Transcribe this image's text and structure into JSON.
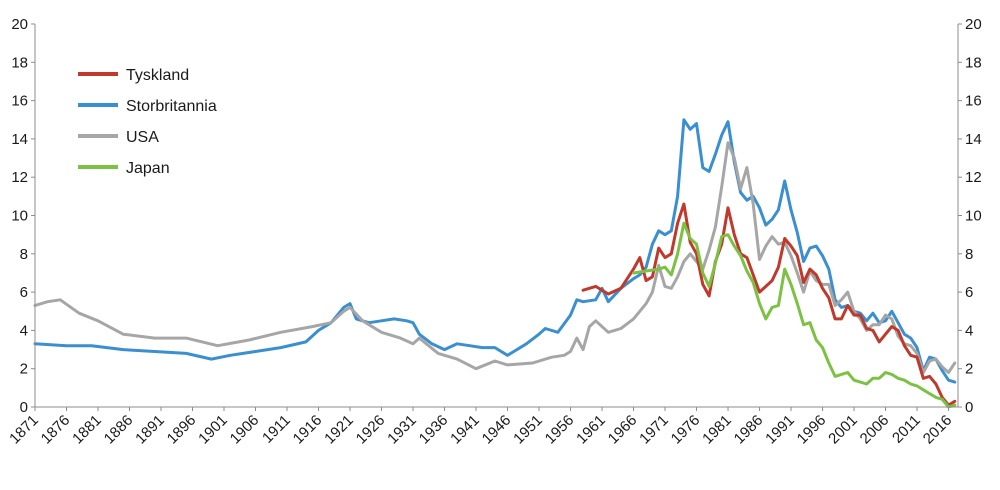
{
  "chart_data": {
    "type": "line",
    "title": "",
    "xlabel": "",
    "ylabel": "",
    "xlim": [
      1871,
      2017.5
    ],
    "ylim": [
      0,
      20
    ],
    "y_ticks": [
      0,
      2,
      4,
      6,
      8,
      10,
      12,
      14,
      16,
      18,
      20
    ],
    "y_tick_labels": [
      "0",
      "2",
      "4",
      "6",
      "8",
      "10",
      "12",
      "14",
      "16",
      "18",
      "20"
    ],
    "secondary_y_axis": true,
    "x_ticks": [
      1871,
      1876,
      1881,
      1886,
      1891,
      1896,
      1901,
      1906,
      1911,
      1916,
      1921,
      1926,
      1931,
      1936,
      1941,
      1946,
      1951,
      1956,
      1961,
      1966,
      1971,
      1976,
      1981,
      1986,
      1991,
      1996,
      2001,
      2006,
      2011,
      2016
    ],
    "x_tick_labels": [
      "1871",
      "1876",
      "1881",
      "1886",
      "1891",
      "1896",
      "1901",
      "1906",
      "1911",
      "1916",
      "1921",
      "1926",
      "1931",
      "1936",
      "1941",
      "1946",
      "1951",
      "1956",
      "1961",
      "1966",
      "1971",
      "1976",
      "1981",
      "1986",
      "1991",
      "1996",
      "2001",
      "2006",
      "2011",
      "2016"
    ],
    "x_tick_label_rotation": -45,
    "grid": false,
    "legend_position": "top-left",
    "series": [
      {
        "name": "Tyskland",
        "color": "#c0392b",
        "x": [
          1958,
          1960,
          1962,
          1964,
          1966,
          1967,
          1968,
          1969,
          1970,
          1971,
          1972,
          1973,
          1974,
          1975,
          1976,
          1977,
          1978,
          1979,
          1980,
          1981,
          1982,
          1983,
          1984,
          1985,
          1986,
          1987,
          1988,
          1989,
          1990,
          1991,
          1992,
          1993,
          1994,
          1995,
          1996,
          1997,
          1998,
          1999,
          2000,
          2001,
          2002,
          2003,
          2004,
          2005,
          2006,
          2007,
          2008,
          2009,
          2010,
          2011,
          2012,
          2013,
          2014,
          2015,
          2016,
          2017
        ],
        "y": [
          6.1,
          6.3,
          5.9,
          6.2,
          7.2,
          7.8,
          6.6,
          6.8,
          8.3,
          7.8,
          8.0,
          9.6,
          10.6,
          8.6,
          8.0,
          6.4,
          5.8,
          7.6,
          8.5,
          10.4,
          9.0,
          8.0,
          7.8,
          6.9,
          6.0,
          6.3,
          6.6,
          7.3,
          8.8,
          8.4,
          7.9,
          6.5,
          7.2,
          6.9,
          6.2,
          5.7,
          4.6,
          4.6,
          5.3,
          4.8,
          4.8,
          4.1,
          4.0,
          3.4,
          3.8,
          4.2,
          4.0,
          3.2,
          2.7,
          2.6,
          1.5,
          1.6,
          1.2,
          0.5,
          0.1,
          0.3
        ]
      },
      {
        "name": "Storbritannia",
        "color": "#3a8fd0",
        "x": [
          1871,
          1876,
          1880,
          1885,
          1890,
          1895,
          1899,
          1902,
          1906,
          1910,
          1914,
          1916,
          1918,
          1920,
          1921,
          1922,
          1924,
          1926,
          1928,
          1930,
          1931,
          1932,
          1934,
          1936,
          1938,
          1940,
          1942,
          1944,
          1946,
          1947,
          1949,
          1951,
          1952,
          1954,
          1956,
          1957,
          1958,
          1960,
          1961,
          1962,
          1964,
          1966,
          1967,
          1968,
          1969,
          1970,
          1971,
          1972,
          1973,
          1974,
          1975,
          1976,
          1977,
          1978,
          1979,
          1980,
          1981,
          1982,
          1983,
          1984,
          1985,
          1986,
          1987,
          1988,
          1989,
          1990,
          1991,
          1992,
          1993,
          1994,
          1995,
          1996,
          1997,
          1998,
          1999,
          2000,
          2001,
          2002,
          2003,
          2004,
          2005,
          2006,
          2007,
          2008,
          2009,
          2010,
          2011,
          2012,
          2013,
          2014,
          2015,
          2016,
          2017
        ],
        "y": [
          3.3,
          3.2,
          3.2,
          3.0,
          2.9,
          2.8,
          2.5,
          2.7,
          2.9,
          3.1,
          3.4,
          4.0,
          4.4,
          5.2,
          5.4,
          4.6,
          4.4,
          4.5,
          4.6,
          4.5,
          4.4,
          3.8,
          3.3,
          3.0,
          3.3,
          3.2,
          3.1,
          3.1,
          2.7,
          2.9,
          3.3,
          3.8,
          4.1,
          3.9,
          4.8,
          5.6,
          5.5,
          5.6,
          6.2,
          5.5,
          6.2,
          6.7,
          6.9,
          7.3,
          8.5,
          9.2,
          9.0,
          9.2,
          11.0,
          15.0,
          14.5,
          14.8,
          12.5,
          12.3,
          13.2,
          14.2,
          14.9,
          12.8,
          11.2,
          10.8,
          11.0,
          10.4,
          9.5,
          9.8,
          10.3,
          11.8,
          10.3,
          9.1,
          7.6,
          8.3,
          8.4,
          7.9,
          7.2,
          5.6,
          5.2,
          5.3,
          5.0,
          4.9,
          4.5,
          4.9,
          4.4,
          4.5,
          5.0,
          4.4,
          3.8,
          3.6,
          3.1,
          1.9,
          2.6,
          2.5,
          1.9,
          1.4,
          1.3
        ]
      },
      {
        "name": "USA",
        "color": "#a6a6a6",
        "x": [
          1871,
          1873,
          1875,
          1878,
          1881,
          1885,
          1890,
          1895,
          1900,
          1905,
          1910,
          1915,
          1918,
          1920,
          1921,
          1923,
          1926,
          1929,
          1931,
          1932,
          1935,
          1938,
          1941,
          1944,
          1946,
          1950,
          1953,
          1955,
          1956,
          1957,
          1958,
          1959,
          1960,
          1962,
          1964,
          1966,
          1967,
          1968,
          1969,
          1970,
          1971,
          1972,
          1973,
          1974,
          1975,
          1976,
          1977,
          1978,
          1979,
          1980,
          1981,
          1982,
          1983,
          1984,
          1985,
          1986,
          1987,
          1988,
          1989,
          1990,
          1991,
          1992,
          1993,
          1994,
          1995,
          1996,
          1997,
          1998,
          1999,
          2000,
          2001,
          2002,
          2003,
          2004,
          2005,
          2006,
          2007,
          2008,
          2009,
          2010,
          2011,
          2012,
          2013,
          2014,
          2015,
          2016,
          2017
        ],
        "y": [
          5.3,
          5.5,
          5.6,
          4.9,
          4.5,
          3.8,
          3.6,
          3.6,
          3.2,
          3.5,
          3.9,
          4.2,
          4.4,
          5.0,
          5.2,
          4.5,
          3.9,
          3.6,
          3.3,
          3.6,
          2.8,
          2.5,
          2.0,
          2.4,
          2.2,
          2.3,
          2.6,
          2.7,
          2.9,
          3.6,
          3.0,
          4.2,
          4.5,
          3.9,
          4.1,
          4.6,
          5.0,
          5.4,
          6.0,
          7.4,
          6.3,
          6.2,
          6.8,
          7.6,
          8.0,
          7.6,
          7.2,
          8.2,
          9.4,
          11.5,
          13.8,
          13.0,
          11.4,
          12.5,
          10.6,
          7.7,
          8.4,
          8.9,
          8.5,
          8.6,
          7.9,
          7.0,
          6.0,
          7.1,
          6.6,
          6.4,
          6.4,
          5.3,
          5.6,
          6.0,
          5.0,
          4.6,
          4.0,
          4.3,
          4.3,
          4.8,
          4.6,
          3.7,
          3.3,
          3.2,
          2.8,
          1.8,
          2.4,
          2.5,
          2.1,
          1.8,
          2.3
        ]
      },
      {
        "name": "Japan",
        "color": "#7cc242",
        "x": [
          1966,
          1968,
          1970,
          1971,
          1972,
          1973,
          1974,
          1975,
          1976,
          1977,
          1978,
          1979,
          1980,
          1981,
          1982,
          1983,
          1984,
          1985,
          1986,
          1987,
          1988,
          1989,
          1990,
          1991,
          1992,
          1993,
          1994,
          1995,
          1996,
          1997,
          1998,
          1999,
          2000,
          2001,
          2002,
          2003,
          2004,
          2005,
          2006,
          2007,
          2008,
          2009,
          2010,
          2011,
          2012,
          2013,
          2014,
          2015,
          2016,
          2017
        ],
        "y": [
          7.0,
          7.1,
          7.2,
          7.3,
          6.9,
          8.0,
          9.6,
          8.8,
          8.5,
          7.0,
          6.3,
          7.5,
          8.9,
          9.0,
          8.4,
          7.9,
          7.1,
          6.5,
          5.4,
          4.6,
          5.2,
          5.3,
          7.2,
          6.4,
          5.4,
          4.3,
          4.4,
          3.5,
          3.1,
          2.3,
          1.6,
          1.7,
          1.8,
          1.4,
          1.3,
          1.2,
          1.5,
          1.5,
          1.8,
          1.7,
          1.5,
          1.4,
          1.2,
          1.1,
          0.9,
          0.7,
          0.5,
          0.4,
          0.0,
          0.1
        ]
      }
    ]
  }
}
